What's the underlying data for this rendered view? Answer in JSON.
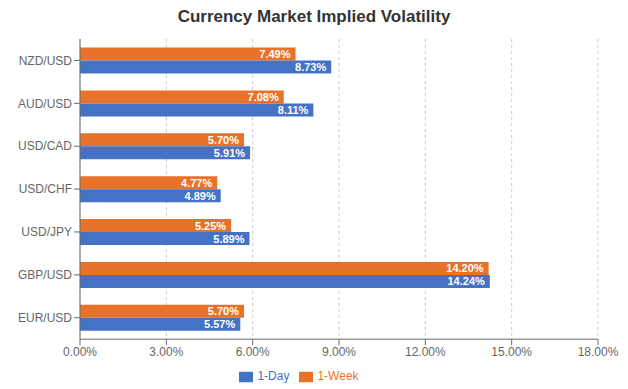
{
  "chart_data": {
    "type": "bar",
    "orientation": "horizontal",
    "title": "Currency Market Implied Volatility",
    "categories": [
      "EUR/USD",
      "GBP/USD",
      "USD/JPY",
      "USD/CHF",
      "USD/CAD",
      "AUD/USD",
      "NZD/USD"
    ],
    "series": [
      {
        "name": "1-Week",
        "color": "#E8722A",
        "values": [
          5.7,
          14.2,
          5.25,
          4.77,
          5.7,
          7.08,
          7.49
        ],
        "value_labels": [
          "5.70%",
          "14.20%",
          "5.25%",
          "4.77%",
          "5.70%",
          "7.08%",
          "7.49%"
        ]
      },
      {
        "name": "1-Day",
        "color": "#4472C4",
        "values": [
          5.57,
          14.24,
          5.89,
          4.89,
          5.91,
          8.11,
          8.73
        ],
        "value_labels": [
          "5.57%",
          "14.24%",
          "5.89%",
          "4.89%",
          "5.91%",
          "8.11%",
          "8.73%"
        ]
      }
    ],
    "xlim": [
      0,
      18
    ],
    "xticks": [
      {
        "value": 0,
        "label": "0.00%"
      },
      {
        "value": 3,
        "label": "3.00%"
      },
      {
        "value": 6,
        "label": "6.00%"
      },
      {
        "value": 9,
        "label": "9.00%"
      },
      {
        "value": 12,
        "label": "12.00%"
      },
      {
        "value": 15,
        "label": "15.00%"
      },
      {
        "value": 18,
        "label": "18.00%"
      }
    ],
    "grid": true,
    "legend": "bottom",
    "data_labels": true
  }
}
